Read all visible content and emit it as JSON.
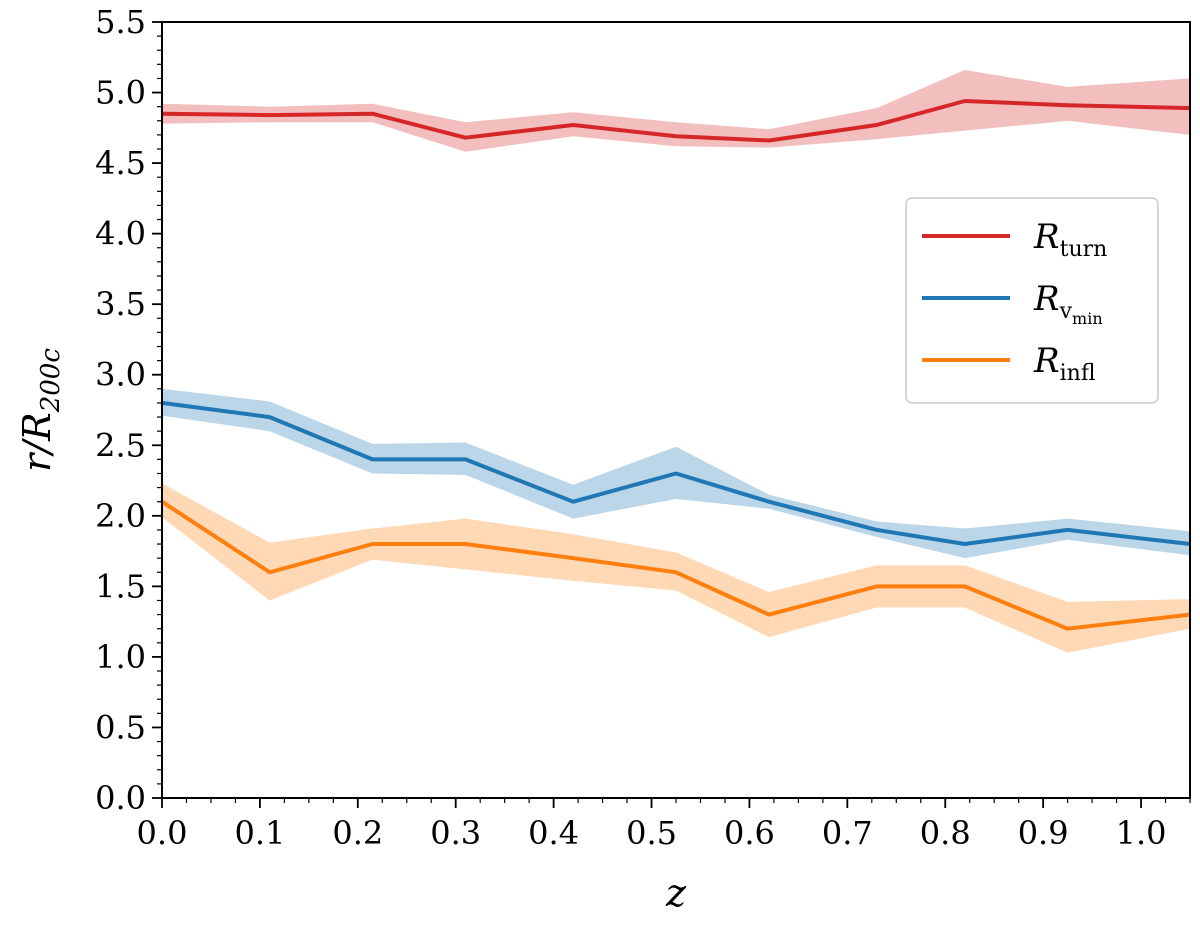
{
  "chart_data": {
    "type": "line",
    "title": "",
    "xlabel": "z",
    "ylabel": "r/R200c",
    "ylabel_parts": {
      "main": "r/R",
      "sub": "200c"
    },
    "xlim": [
      0.0,
      1.05
    ],
    "ylim": [
      0.0,
      5.5
    ],
    "xticks": [
      0.0,
      0.1,
      0.2,
      0.3,
      0.4,
      0.5,
      0.6,
      0.7,
      0.8,
      0.9,
      1.0
    ],
    "xtick_labels": [
      "0.0",
      "0.1",
      "0.2",
      "0.3",
      "0.4",
      "0.5",
      "0.6",
      "0.7",
      "0.8",
      "0.9",
      "1.0"
    ],
    "yticks": [
      0.0,
      0.5,
      1.0,
      1.5,
      2.0,
      2.5,
      3.0,
      3.5,
      4.0,
      4.5,
      5.0,
      5.5
    ],
    "ytick_labels": [
      "0.0",
      "0.5",
      "1.0",
      "1.5",
      "2.0",
      "2.5",
      "3.0",
      "3.5",
      "4.0",
      "4.5",
      "5.0",
      "5.5"
    ],
    "grid": false,
    "legend_position": "center-right",
    "x": [
      0.0,
      0.11,
      0.215,
      0.31,
      0.42,
      0.525,
      0.62,
      0.73,
      0.82,
      0.925,
      1.05
    ],
    "series": [
      {
        "name": "R_turn",
        "label_main": "R",
        "label_sub": "turn",
        "color": "#d62728",
        "values": [
          4.85,
          4.84,
          4.85,
          4.68,
          4.77,
          4.69,
          4.66,
          4.77,
          4.94,
          4.91,
          4.89
        ],
        "lower": [
          4.78,
          4.79,
          4.79,
          4.58,
          4.69,
          4.62,
          4.61,
          4.67,
          4.73,
          4.8,
          4.7
        ],
        "upper": [
          4.92,
          4.9,
          4.92,
          4.79,
          4.86,
          4.79,
          4.74,
          4.89,
          5.16,
          5.04,
          5.1
        ]
      },
      {
        "name": "R_vmin",
        "label_main": "R",
        "label_sub": "v",
        "label_subsub": "min",
        "color": "#1f77b4",
        "values": [
          2.8,
          2.7,
          2.4,
          2.4,
          2.1,
          2.3,
          2.1,
          1.9,
          1.8,
          1.9,
          1.8
        ],
        "lower": [
          2.71,
          2.6,
          2.3,
          2.29,
          1.98,
          2.12,
          2.05,
          1.85,
          1.7,
          1.83,
          1.72
        ],
        "upper": [
          2.9,
          2.81,
          2.51,
          2.52,
          2.22,
          2.49,
          2.15,
          1.96,
          1.91,
          1.98,
          1.89
        ]
      },
      {
        "name": "R_infl",
        "label_main": "R",
        "label_sub": "infl",
        "color": "#ff7f0e",
        "values": [
          2.1,
          1.6,
          1.8,
          1.8,
          1.7,
          1.6,
          1.3,
          1.5,
          1.5,
          1.2,
          1.3
        ],
        "lower": [
          1.99,
          1.4,
          1.69,
          1.62,
          1.54,
          1.47,
          1.14,
          1.35,
          1.35,
          1.03,
          1.2
        ],
        "upper": [
          2.23,
          1.81,
          1.91,
          1.98,
          1.87,
          1.74,
          1.46,
          1.65,
          1.65,
          1.39,
          1.41
        ]
      }
    ]
  }
}
